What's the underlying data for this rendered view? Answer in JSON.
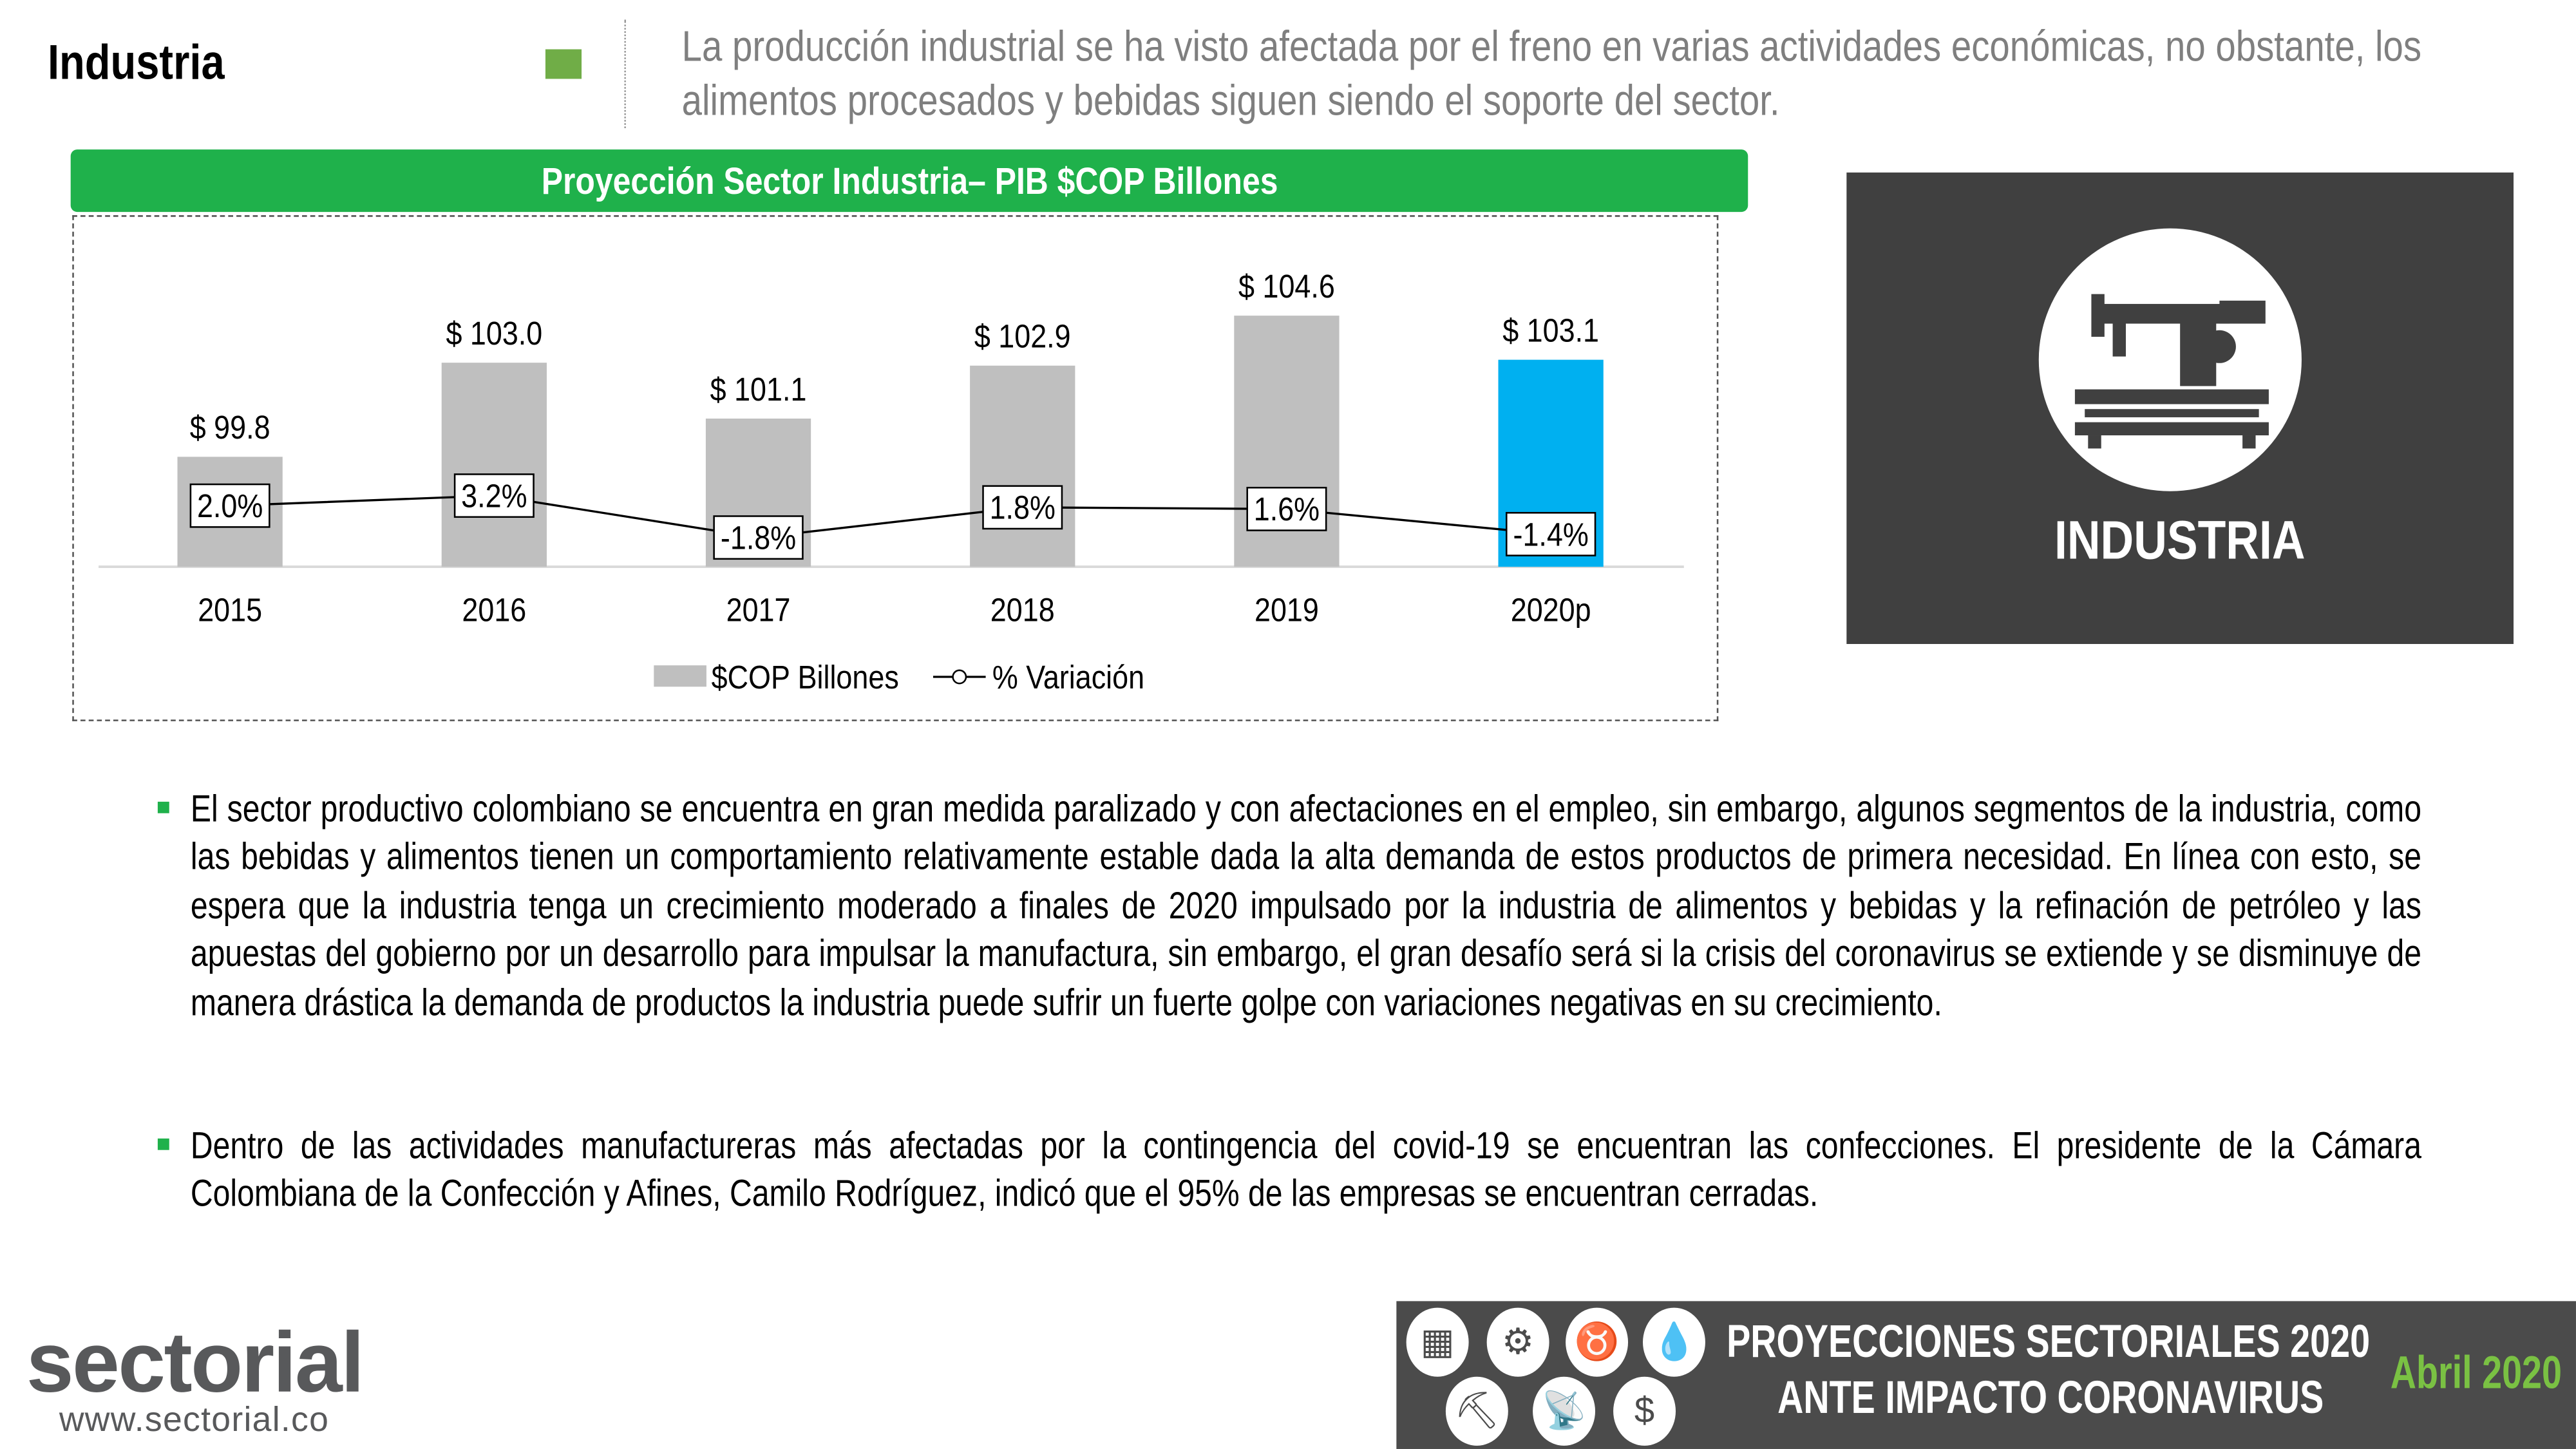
{
  "header": {
    "title": "Industria",
    "subtitle_line1": "La producción industrial se ha visto afectada por el freno en varias actividades económicas, no obstante, los",
    "subtitle_line2": "alimentos procesados y bebidas siguen siendo el soporte del sector."
  },
  "chart_data": {
    "type": "bar",
    "title": "Proyección Sector Industria– PIB $COP Billones",
    "categories": [
      "2015",
      "2016",
      "2017",
      "2018",
      "2019",
      "2020p"
    ],
    "series": [
      {
        "name": "$COP Billones",
        "type": "bar",
        "values": [
          99.8,
          103.0,
          101.1,
          102.9,
          104.6,
          103.1
        ],
        "labels": [
          "$ 99.8",
          "$ 103.0",
          "$ 101.1",
          "$ 102.9",
          "$ 104.6",
          "$ 103.1"
        ],
        "color": "#bfbfbf",
        "highlight_color": "#00b0f0",
        "highlight_index": 5
      },
      {
        "name": "% Variación",
        "type": "line",
        "values": [
          2.0,
          3.2,
          -1.8,
          1.8,
          1.6,
          -1.4
        ],
        "labels": [
          "2.0%",
          "3.2%",
          "-1.8%",
          "1.8%",
          "1.6%",
          "-1.4%"
        ],
        "color": "#000000"
      }
    ],
    "legend": "bottom",
    "grid": false
  },
  "side_panel": {
    "label": "INDUSTRIA",
    "icon": "sewing-machine-icon"
  },
  "bullets": [
    "El sector productivo colombiano se encuentra en gran medida paralizado y con afectaciones en el empleo, sin embargo, algunos segmentos de la industria, como las bebidas y alimentos tienen un comportamiento relativamente estable dada la alta demanda de estos productos de primera necesidad. En línea con esto, se espera que la industria tenga un crecimiento moderado a finales de 2020 impulsado por la industria de alimentos y bebidas y la refinación de petróleo y las apuestas del gobierno por un desarrollo para impulsar la manufactura, sin embargo, el gran desafío será si la crisis del coronavirus se extiende y se disminuye de manera drástica la demanda de productos la industria puede sufrir un fuerte golpe con variaciones negativas en su crecimiento.",
    "Dentro de las actividades manufactureras más afectadas por la contingencia del covid-19 se encuentran las confecciones. El presidente de la Cámara Colombiana de la Confección y Afines, Camilo Rodríguez, indicó que el 95% de las empresas se encuentran cerradas."
  ],
  "footer": {
    "line1": "PROYECCIONES SECTORIALES 2020",
    "line2": "ANTE IMPACTO CORONAVIRUS",
    "date": "Abril 2020",
    "icons": [
      "building-icon",
      "sewing-machine-icon",
      "cow-icon",
      "drops-icon",
      "excavator-icon",
      "antenna-icon",
      "money-bag-icon"
    ]
  },
  "logo": {
    "name": "sectorial",
    "url": "www.sectorial.co"
  },
  "colors": {
    "green": "#1fb14b",
    "accent_green": "#70ad47",
    "panel": "#404040"
  }
}
